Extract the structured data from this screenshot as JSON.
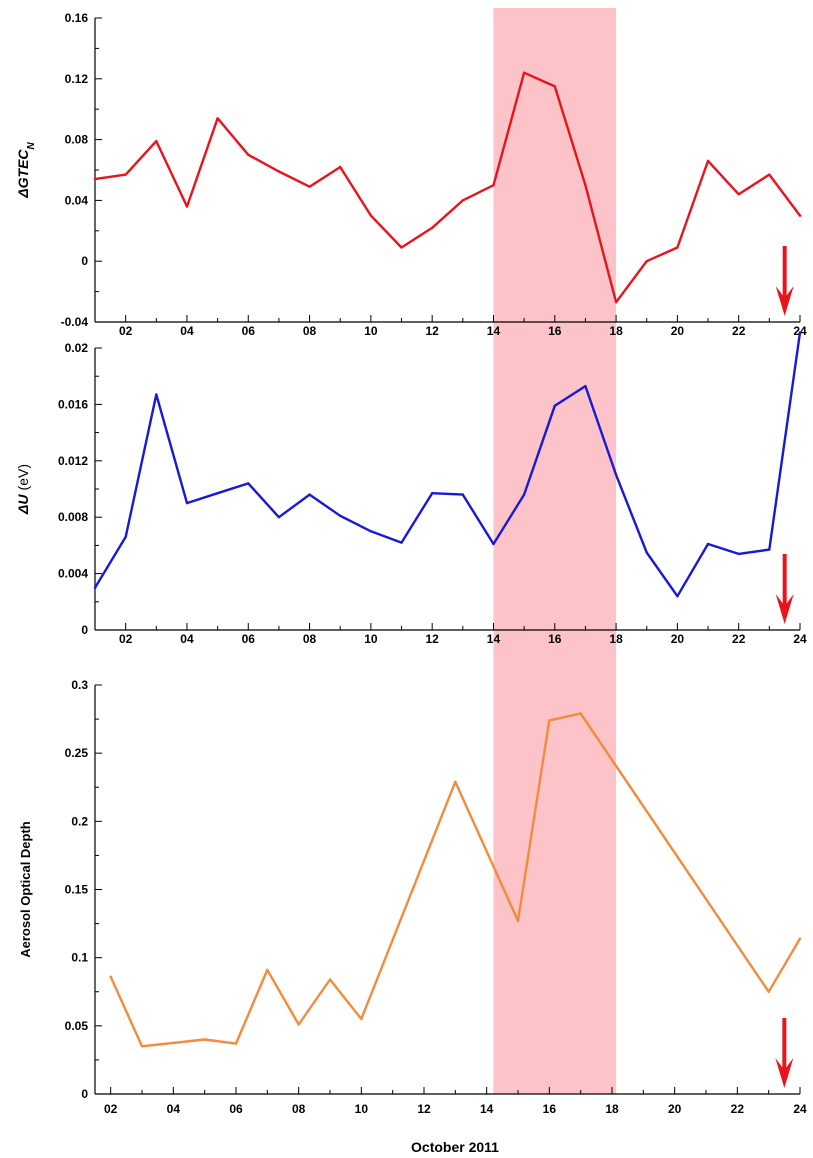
{
  "figure": {
    "xlabel": "October 2011",
    "highlight": {
      "from": 14,
      "to": 18,
      "color": "#fcc4c8"
    },
    "event_marker": {
      "day": 23.5,
      "color": "#e8141c",
      "icon": "down-arrow-icon"
    }
  },
  "chart_data": [
    {
      "type": "line",
      "id": "gtec",
      "ylabel_main": "ΔGTEC",
      "ylabel_sub": "N",
      "ylabel_unit": "",
      "xlim": [
        1,
        24
      ],
      "ylim": [
        -0.04,
        0.16
      ],
      "yticks": [
        -0.04,
        0,
        0.04,
        0.08,
        0.12,
        0.16
      ],
      "ytick_labels": [
        "-0.04",
        "0",
        "0.04",
        "0.08",
        "0.12",
        "0.16"
      ],
      "xticks": [
        2,
        4,
        6,
        8,
        10,
        12,
        14,
        16,
        18,
        20,
        22,
        24
      ],
      "xtick_labels": [
        "02",
        "04",
        "06",
        "08",
        "10",
        "12",
        "14",
        "16",
        "18",
        "20",
        "22",
        "24"
      ],
      "series": [
        {
          "color": "#e8141c",
          "x": [
            1,
            2,
            3,
            4,
            5,
            6,
            7,
            8,
            9,
            10,
            11,
            12,
            13,
            14,
            15,
            16,
            17,
            18,
            19,
            20,
            21,
            22,
            23,
            24
          ],
          "values": [
            0.054,
            0.057,
            0.079,
            0.036,
            0.094,
            0.07,
            0.059,
            0.049,
            0.062,
            0.03,
            0.009,
            0.022,
            0.04,
            0.05,
            0.124,
            0.115,
            0.05,
            -0.027,
            0.0,
            0.009,
            0.066,
            0.044,
            0.057,
            0.03
          ]
        }
      ]
    },
    {
      "type": "line",
      "id": "du",
      "ylabel_main": "ΔU",
      "ylabel_sub": "",
      "ylabel_unit": "(eV)",
      "xlim": [
        1,
        24
      ],
      "ylim": [
        0,
        0.02
      ],
      "yticks": [
        0,
        0.004,
        0.008,
        0.012,
        0.016,
        0.02
      ],
      "ytick_labels": [
        "0",
        "0.004",
        "0.008",
        "0.012",
        "0.016",
        "0.02"
      ],
      "xticks": [
        2,
        4,
        6,
        8,
        10,
        12,
        14,
        16,
        18,
        20,
        22,
        24
      ],
      "xtick_labels": [
        "02",
        "04",
        "06",
        "08",
        "10",
        "12",
        "14",
        "16",
        "18",
        "20",
        "22",
        "24"
      ],
      "series": [
        {
          "color": "#1818d8",
          "x": [
            1,
            2,
            3,
            4,
            5,
            6,
            7,
            8,
            9,
            10,
            11,
            12,
            13,
            14,
            15,
            16,
            17,
            18,
            19,
            20,
            21,
            22,
            23,
            24
          ],
          "values": [
            0.003,
            0.0066,
            0.0167,
            0.009,
            0.0097,
            0.0104,
            0.008,
            0.0096,
            0.0081,
            0.007,
            0.0062,
            0.0097,
            0.0096,
            0.0061,
            0.0096,
            0.0159,
            0.0173,
            0.011,
            0.0055,
            0.0024,
            0.0061,
            0.0054,
            0.0057,
            0.0211
          ]
        }
      ]
    },
    {
      "type": "line",
      "id": "aod",
      "ylabel_main": "Aerosol Optical Depth",
      "ylabel_sub": "",
      "ylabel_unit": "",
      "xlim": [
        1.5,
        24
      ],
      "ylim": [
        0,
        0.3
      ],
      "yticks": [
        0,
        0.05,
        0.1,
        0.15,
        0.2,
        0.25,
        0.3
      ],
      "ytick_labels": [
        "0",
        "0.05",
        "0.1",
        "0.15",
        "0.2",
        "0.25",
        "0.3"
      ],
      "xticks": [
        2,
        4,
        6,
        8,
        10,
        12,
        14,
        16,
        18,
        20,
        22,
        24
      ],
      "xtick_labels": [
        "02",
        "04",
        "06",
        "08",
        "10",
        "12",
        "14",
        "16",
        "18",
        "20",
        "22",
        "24"
      ],
      "series": [
        {
          "color": "#f28c3c",
          "x": [
            2,
            3,
            5,
            6,
            7,
            8,
            9,
            10,
            13,
            15,
            16,
            17,
            23,
            24
          ],
          "values": [
            0.086,
            0.035,
            0.04,
            0.037,
            0.091,
            0.051,
            0.084,
            0.055,
            0.229,
            0.127,
            0.274,
            0.279,
            0.075,
            0.114
          ]
        }
      ]
    }
  ]
}
